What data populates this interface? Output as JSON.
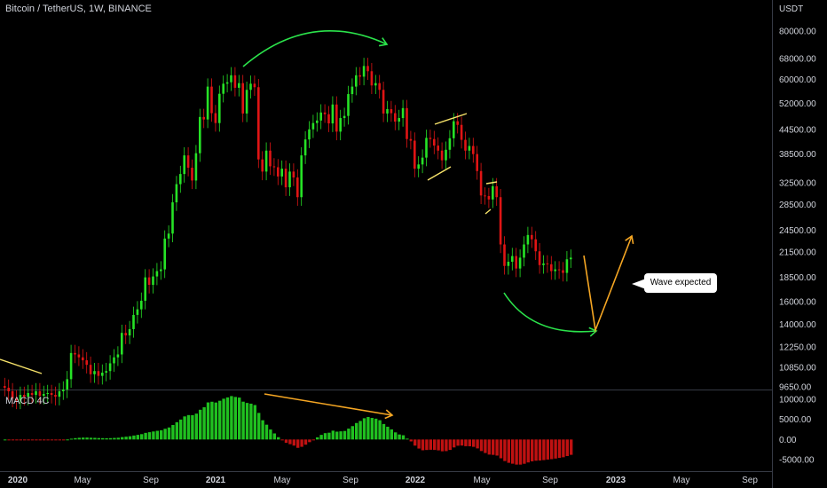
{
  "header": {
    "symbol_title": "Bitcoin / TetherUS, 1W, BINANCE",
    "currency": "USDT"
  },
  "indicator": {
    "title": "MACD 4C"
  },
  "annotation": {
    "callout": "Wave expected"
  },
  "colors": {
    "up": "#26e226",
    "down": "#e01414",
    "arrow_green": "#2be34b",
    "arrow_orange": "#f5a623",
    "wedge_yellow": "#f7e36a",
    "grid": "#2a2e39"
  },
  "chart_data": [
    {
      "type": "candlestick",
      "title": "Bitcoin / TetherUS, 1W, BINANCE",
      "y_unit": "USDT",
      "y_scale": "log",
      "ylim": [
        9000,
        100000
      ],
      "price_ticks": [
        "80000.00",
        "68000.00",
        "60000.00",
        "52000.00",
        "44500.00",
        "38500.00",
        "32500.00",
        "28500.00",
        "24500.00",
        "21500.00",
        "18500.00",
        "16000.00",
        "14000.00",
        "12250.00",
        "10850.00",
        "9650.00"
      ],
      "price_tick_values": [
        80000,
        68000,
        60000,
        52000,
        44500,
        38500,
        32500,
        28500,
        24500,
        21500,
        18500,
        16000,
        14000,
        12250,
        10850,
        9650
      ],
      "x_ticks": [
        "2020",
        "May",
        "Sep",
        "2021",
        "May",
        "Sep",
        "2022",
        "May",
        "Sep",
        "2023",
        "May",
        "Sep"
      ],
      "close_series_weekly_approx": [
        9600,
        9400,
        9000,
        8900,
        9200,
        9100,
        9300,
        9200,
        9400,
        9150,
        9250,
        9300,
        9200,
        9100,
        9400,
        9500,
        10100,
        11800,
        11700,
        11500,
        11300,
        11000,
        10400,
        10600,
        10300,
        10500,
        10600,
        11100,
        11500,
        11700,
        13300,
        13100,
        13600,
        14800,
        15300,
        16100,
        18500,
        17700,
        18600,
        19200,
        19400,
        23300,
        24000,
        28900,
        32200,
        34200,
        38200,
        35500,
        32900,
        38700,
        48000,
        47300,
        57500,
        49100,
        46300,
        55100,
        58500,
        59000,
        61500,
        57100,
        58700,
        49000,
        56400,
        58500,
        57300,
        37300,
        34700,
        39300,
        35800,
        35600,
        33700,
        35300,
        31600,
        34700,
        33500,
        29800,
        38200,
        42000,
        44600,
        46300,
        47000,
        49300,
        48800,
        46200,
        51700,
        44000,
        47700,
        48300,
        55000,
        57500,
        61500,
        61000,
        65000,
        63000,
        57900,
        58700,
        56400,
        49000,
        50300,
        49100,
        46700,
        47700,
        50600,
        42100,
        41700,
        35300,
        36200,
        37700,
        42400,
        42100,
        40500,
        39300,
        37100,
        39500,
        42300,
        46800,
        45800,
        41900,
        39300,
        40400,
        38500,
        34800,
        30100,
        30000,
        29400,
        31800,
        29800,
        22500,
        19800,
        20300,
        21000,
        19500,
        20800,
        22500,
        23800,
        23200,
        21600,
        19900,
        20100,
        20000,
        19200,
        19400,
        19300,
        19000,
        20600,
        20800
      ],
      "macd_hist_ticks": [
        "10000.00",
        "5000.00",
        "0.00",
        "-5000.00"
      ],
      "macd_hist_tick_values": [
        10000,
        5000,
        0,
        -5000
      ],
      "annotations": [
        "Wave expected"
      ]
    }
  ]
}
